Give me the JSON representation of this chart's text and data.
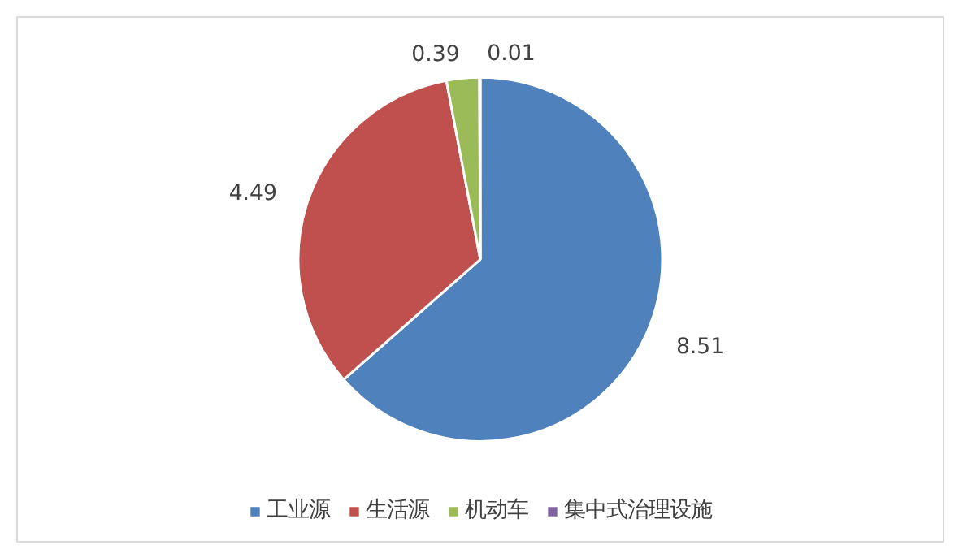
{
  "chart_data": {
    "type": "pie",
    "categories": [
      "工业源",
      "生活源",
      "机动车",
      "集中式治理设施"
    ],
    "values": [
      8.51,
      4.49,
      0.39,
      0.01
    ],
    "colors": [
      "#4f81bd",
      "#c0504d",
      "#9bbb59",
      "#8064a2"
    ],
    "data_labels": true,
    "legend": "bottom"
  }
}
